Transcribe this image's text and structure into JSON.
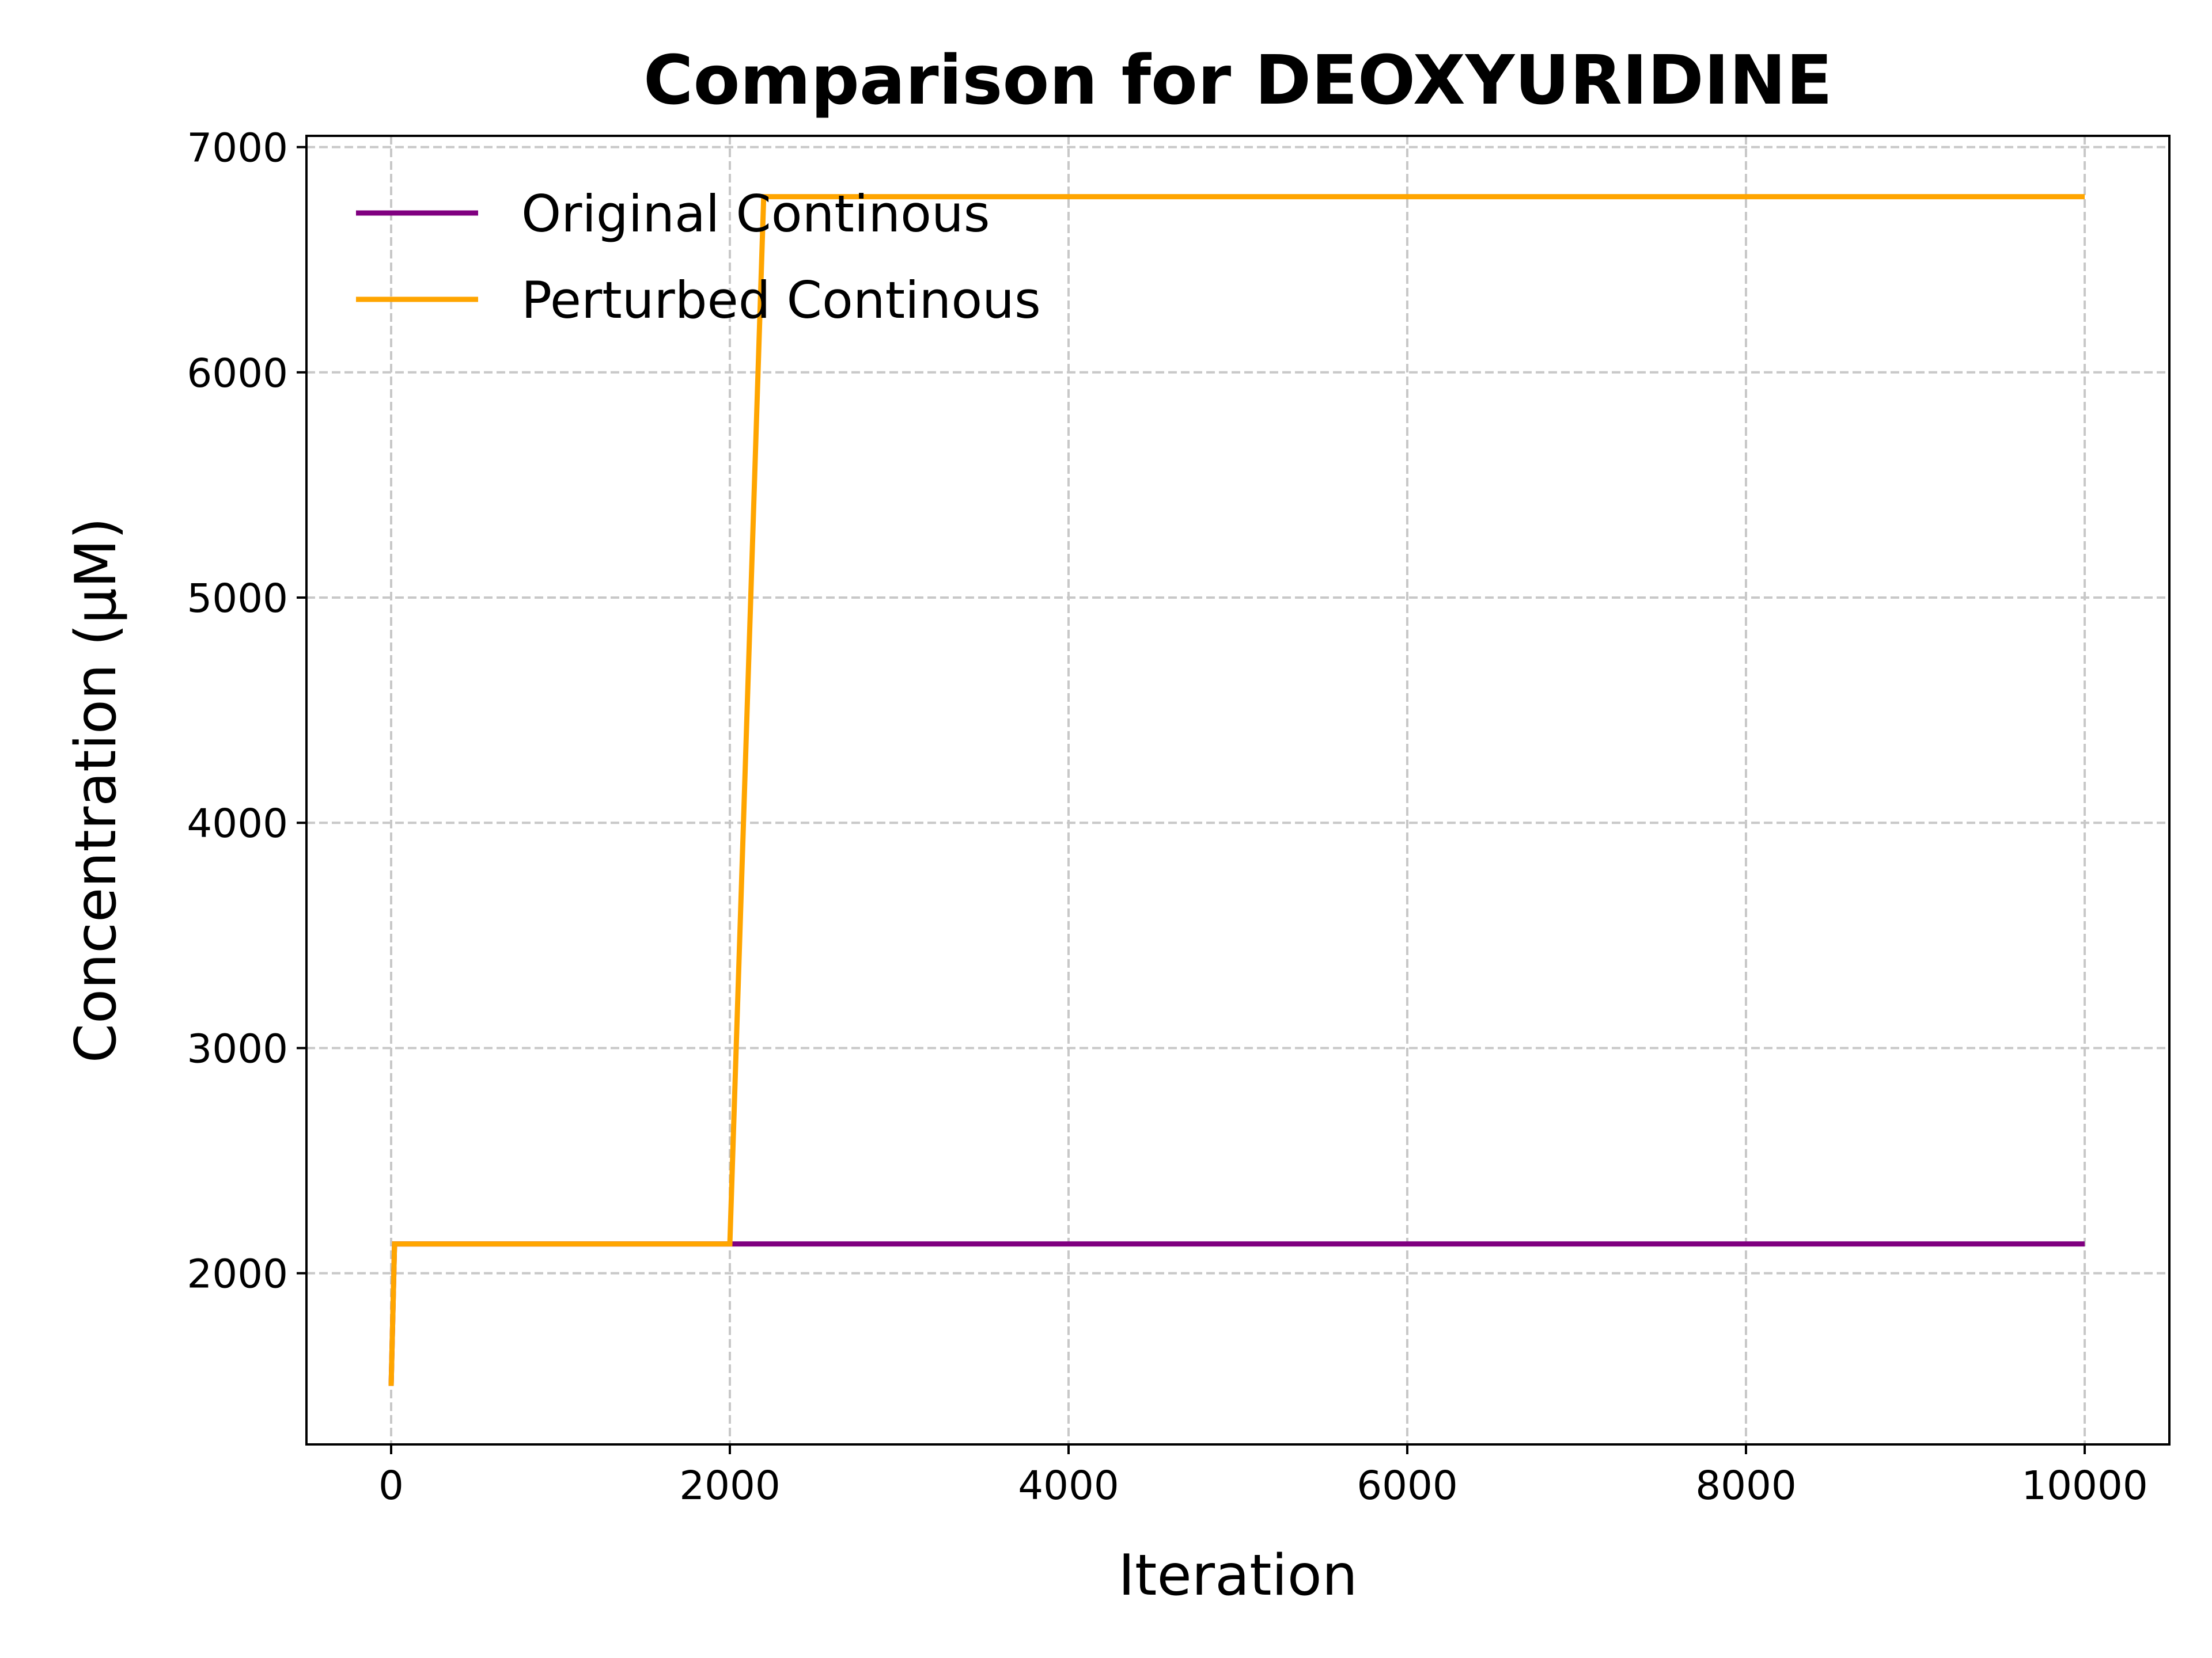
{
  "chart_data": {
    "type": "line",
    "title": "Comparison for DEOXYURIDINE",
    "xlabel": "Iteration",
    "ylabel": "Concentration (μM)",
    "xlim": [
      -500,
      10500
    ],
    "ylim": [
      1240,
      7050
    ],
    "xticks": [
      0,
      2000,
      4000,
      6000,
      8000,
      10000
    ],
    "yticks": [
      2000,
      3000,
      4000,
      5000,
      6000,
      7000
    ],
    "grid": true,
    "legend_position": "upper-left",
    "series": [
      {
        "name": "Original Continous",
        "color": "#800080",
        "x": [
          0,
          20,
          2000,
          10000
        ],
        "y": [
          1500,
          2130,
          2130,
          2130
        ]
      },
      {
        "name": "Perturbed Continous",
        "color": "#ffa500",
        "x": [
          0,
          20,
          2000,
          2200,
          10000
        ],
        "y": [
          1500,
          2130,
          2130,
          6780,
          6780
        ]
      }
    ]
  }
}
